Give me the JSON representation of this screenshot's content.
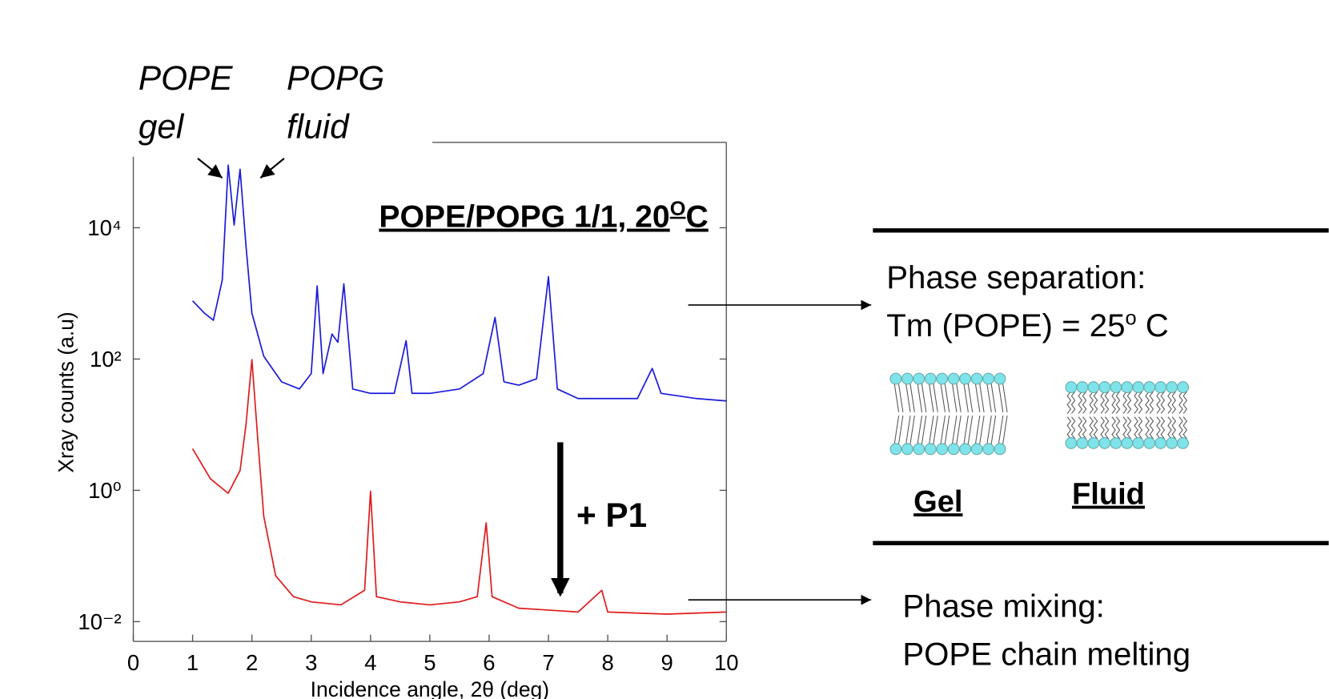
{
  "chart_data": {
    "type": "line",
    "ylog": true,
    "grid": false,
    "title_parts": [
      "POPE/POPG 1/1, 20",
      "O",
      "C"
    ],
    "xlabel": "Incidence angle, 2θ (deg)",
    "ylabel": "Xray counts (a.u)",
    "xlim": [
      0,
      10
    ],
    "xticks": [
      0,
      1,
      2,
      3,
      4,
      5,
      6,
      7,
      8,
      9,
      10
    ],
    "ylim": [
      0.005,
      200000
    ],
    "yticks": [
      {
        "value": 10000,
        "label": "10⁴"
      },
      {
        "value": 100,
        "label": "10²"
      },
      {
        "value": 1,
        "label": "10⁰"
      },
      {
        "value": 0.01,
        "label": "10⁻²"
      }
    ],
    "annotations": [
      "POPE",
      "gel",
      "POPG",
      "fluid",
      "+ P1"
    ],
    "series": [
      {
        "color": "#1a1adc",
        "x": [
          1.0,
          1.2,
          1.35,
          1.5,
          1.6,
          1.7,
          1.8,
          1.9,
          2.0,
          2.2,
          2.5,
          2.8,
          3.0,
          3.1,
          3.2,
          3.35,
          3.45,
          3.55,
          3.7,
          4.0,
          4.4,
          4.6,
          4.7,
          5.0,
          5.5,
          5.9,
          6.1,
          6.25,
          6.5,
          6.8,
          7.0,
          7.15,
          7.5,
          8.0,
          8.5,
          8.75,
          8.9,
          9.5,
          10.0
        ],
        "values": [
          770,
          500,
          390,
          1600,
          90000,
          11000,
          78000,
          5300,
          500,
          110,
          45,
          35,
          60,
          1300,
          60,
          240,
          180,
          1400,
          35,
          30,
          30,
          190,
          30,
          30,
          35,
          60,
          430,
          45,
          40,
          50,
          1800,
          35,
          25,
          25,
          25,
          72,
          30,
          25,
          23
        ]
      },
      {
        "color": "#e01a1a",
        "x": [
          1.0,
          1.3,
          1.6,
          1.8,
          1.9,
          2.0,
          2.1,
          2.2,
          2.4,
          2.7,
          3.0,
          3.5,
          3.9,
          4.0,
          4.1,
          4.5,
          5.0,
          5.5,
          5.8,
          5.95,
          6.05,
          6.5,
          7.0,
          7.5,
          7.9,
          8.0,
          9.0,
          10.0
        ],
        "values": [
          4.3,
          1.5,
          0.9,
          2,
          10,
          98,
          5.8,
          0.4,
          0.05,
          0.024,
          0.02,
          0.018,
          0.03,
          0.97,
          0.024,
          0.02,
          0.018,
          0.02,
          0.024,
          0.32,
          0.024,
          0.016,
          0.015,
          0.014,
          0.03,
          0.014,
          0.013,
          0.014
        ]
      }
    ]
  },
  "panel": {
    "separation": "Phase separation:",
    "tm_parts": [
      "Tm (POPE) = 25",
      "o",
      " C"
    ],
    "gel": "Gel",
    "fluid": "Fluid",
    "mixing": "Phase mixing:",
    "melting": "POPE chain melting"
  }
}
